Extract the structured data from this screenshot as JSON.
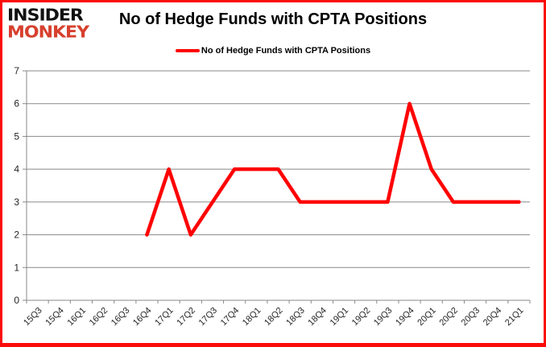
{
  "logo": {
    "line1": "INSIDER",
    "line2": "MONKEY",
    "line1_color": "#121212",
    "line2_color": "#d7402e"
  },
  "header": {
    "title": "No of Hedge Funds with CPTA Positions"
  },
  "legend": {
    "label": "No of Hedge Funds with CPTA Positions",
    "line_color": "#ff0000"
  },
  "chart_data": {
    "type": "line",
    "title": "No of Hedge Funds with CPTA Positions",
    "categories": [
      "15Q3",
      "15Q4",
      "16Q1",
      "16Q2",
      "16Q3",
      "16Q4",
      "17Q1",
      "17Q2",
      "17Q3",
      "17Q4",
      "18Q1",
      "18Q2",
      "18Q3",
      "18Q4",
      "19Q1",
      "19Q2",
      "19Q3",
      "19Q4",
      "20Q1",
      "20Q2",
      "20Q3",
      "20Q4",
      "21Q1"
    ],
    "series": [
      {
        "name": "No of Hedge Funds with CPTA Positions",
        "color": "#ff0000",
        "values": [
          null,
          null,
          null,
          null,
          null,
          2,
          4,
          2,
          3,
          4,
          4,
          4,
          3,
          3,
          3,
          3,
          3,
          6,
          4,
          3,
          3,
          3,
          3
        ]
      }
    ],
    "xlabel": "",
    "ylabel": "",
    "ylim": [
      0,
      7
    ],
    "ytick_interval": 1,
    "grid": true,
    "gridline_color": "#898989",
    "axis_color": "#898989",
    "tick_label_color": "#262626",
    "legend_position": "top"
  }
}
